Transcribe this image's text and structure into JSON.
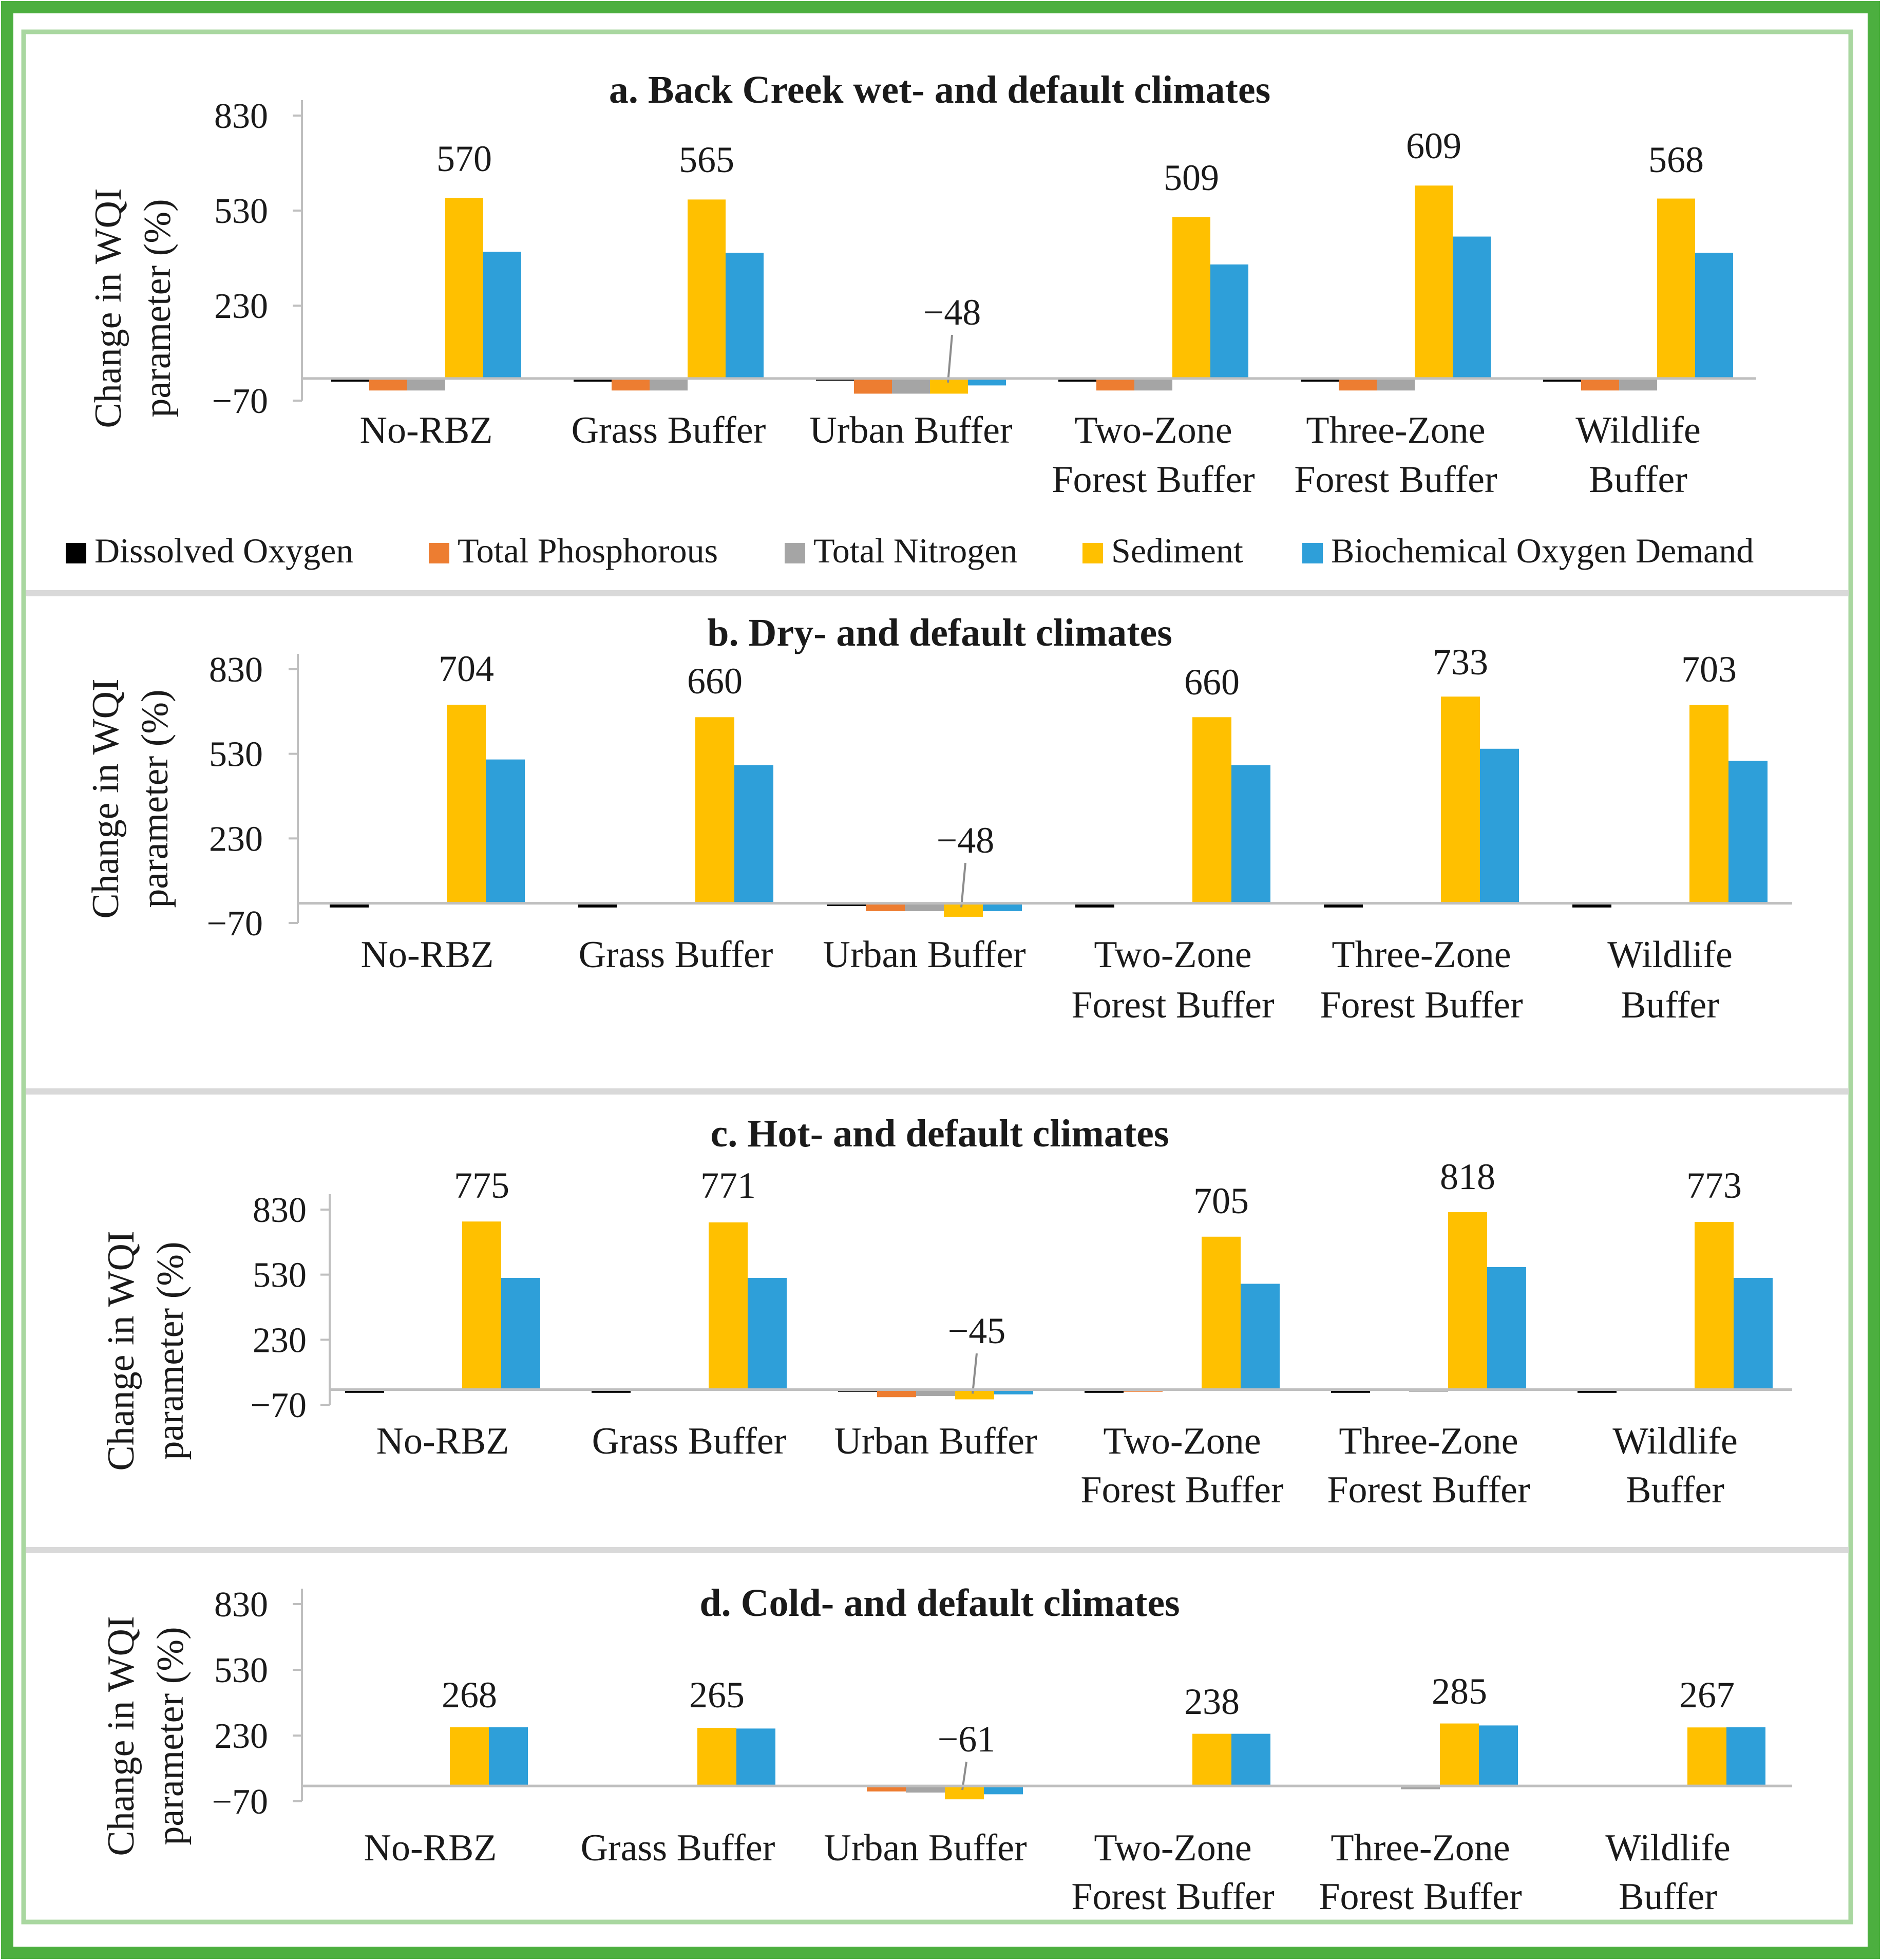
{
  "frame": {
    "outer_border_color": "#4caf3f",
    "inner_border_color": "#a9d7a0",
    "separator_color": "#d9d9d9"
  },
  "legend": {
    "items": [
      {
        "label": "Dissolved Oxygen",
        "color": "#000000"
      },
      {
        "label": "Total Phosphorous",
        "color": "#ed7d31"
      },
      {
        "label": "Total Nitrogen",
        "color": "#a5a5a5"
      },
      {
        "label": "Sediment",
        "color": "#ffc000"
      },
      {
        "label": "Biochemical Oxygen Demand",
        "color": "#2e9fd9"
      }
    ]
  },
  "chart_data": [
    {
      "type": "bar",
      "title": "a. Back Creek wet- and default climates",
      "ylabel": "Change in WQI parameter (%)",
      "ylim": [
        -70,
        830
      ],
      "yticks": [
        "830",
        "530",
        "230",
        "−70"
      ],
      "categories": [
        [
          "No-RBZ"
        ],
        [
          "Grass Buffer"
        ],
        [
          "Urban Buffer"
        ],
        [
          "Two-Zone",
          "Forest Buffer"
        ],
        [
          "Three-Zone",
          "Forest Buffer"
        ],
        [
          "Wildlife",
          "Buffer"
        ]
      ],
      "series": [
        {
          "name": "Dissolved Oxygen",
          "values": [
            -10,
            -10,
            -7,
            -10,
            -10,
            -10
          ]
        },
        {
          "name": "Total Phosphorous",
          "values": [
            -38,
            -38,
            -48,
            -38,
            -38,
            -38
          ]
        },
        {
          "name": "Total Nitrogen",
          "values": [
            -38,
            -38,
            -48,
            -38,
            -38,
            -38
          ]
        },
        {
          "name": "Sediment",
          "values": [
            570,
            565,
            -48,
            509,
            609,
            568
          ]
        },
        {
          "name": "Biochemical Oxygen Demand",
          "values": [
            400,
            397,
            -22,
            360,
            448,
            397
          ]
        }
      ],
      "data_labels": [
        "570",
        "565",
        "−48",
        "509",
        "609",
        "568"
      ],
      "grid": false
    },
    {
      "type": "bar",
      "title": "b. Dry- and default climates",
      "ylabel": "Change in WQI parameter (%)",
      "ylim": [
        -70,
        830
      ],
      "yticks": [
        "830",
        "530",
        "230",
        "−70"
      ],
      "categories": [
        [
          "No-RBZ"
        ],
        [
          "Grass Buffer"
        ],
        [
          "Urban Buffer"
        ],
        [
          "Two-Zone",
          "Forest Buffer"
        ],
        [
          "Three-Zone",
          "Forest Buffer"
        ],
        [
          "Wildlife",
          "Buffer"
        ]
      ],
      "series": [
        {
          "name": "Dissolved Oxygen",
          "values": [
            -15,
            -15,
            -10,
            -15,
            -15,
            -15
          ]
        },
        {
          "name": "Total Phosphorous",
          "values": [
            -3,
            -3,
            -28,
            -3,
            -3,
            -3
          ]
        },
        {
          "name": "Total Nitrogen",
          "values": [
            -3,
            -3,
            -28,
            -3,
            -3,
            -3
          ]
        },
        {
          "name": "Sediment",
          "values": [
            704,
            660,
            -48,
            660,
            733,
            703
          ]
        },
        {
          "name": "Biochemical Oxygen Demand",
          "values": [
            510,
            490,
            -28,
            490,
            548,
            505
          ]
        }
      ],
      "data_labels": [
        "704",
        "660",
        "−48",
        "660",
        "733",
        "703"
      ],
      "grid": false
    },
    {
      "type": "bar",
      "title": "c. Hot- and default climates",
      "ylabel": "Change in WQI parameter (%)",
      "ylim": [
        -70,
        830
      ],
      "yticks": [
        "830",
        "530",
        "230",
        "−70"
      ],
      "categories": [
        [
          "No-RBZ"
        ],
        [
          "Grass Buffer"
        ],
        [
          "Urban Buffer"
        ],
        [
          "Two-Zone",
          "Forest Buffer"
        ],
        [
          "Three-Zone",
          "Forest Buffer"
        ],
        [
          "Wildlife",
          "Buffer"
        ]
      ],
      "series": [
        {
          "name": "Dissolved Oxygen",
          "values": [
            -15,
            -15,
            -10,
            -15,
            -15,
            -15
          ]
        },
        {
          "name": "Total Phosphorous",
          "values": [
            -5,
            -5,
            -35,
            -10,
            -5,
            -5
          ]
        },
        {
          "name": "Total Nitrogen",
          "values": [
            -5,
            -5,
            -30,
            -5,
            -10,
            -5
          ]
        },
        {
          "name": "Sediment",
          "values": [
            775,
            771,
            -45,
            705,
            818,
            773
          ]
        },
        {
          "name": "Biochemical Oxygen Demand",
          "values": [
            515,
            515,
            -22,
            488,
            565,
            515
          ]
        }
      ],
      "data_labels": [
        "775",
        "771",
        "−45",
        "705",
        "818",
        "773"
      ],
      "grid": false
    },
    {
      "type": "bar",
      "title": "d. Cold- and default climates",
      "ylabel": "Change in WQI parameter (%)",
      "ylim": [
        -70,
        830
      ],
      "yticks": [
        "830",
        "530",
        "230",
        "−70"
      ],
      "categories": [
        [
          "No-RBZ"
        ],
        [
          "Grass Buffer"
        ],
        [
          "Urban Buffer"
        ],
        [
          "Two-Zone",
          "Forest Buffer"
        ],
        [
          "Three-Zone",
          "Forest Buffer"
        ],
        [
          "Wildlife",
          "Buffer"
        ]
      ],
      "series": [
        {
          "name": "Dissolved Oxygen",
          "values": [
            -5,
            -5,
            -5,
            -5,
            -5,
            -5
          ]
        },
        {
          "name": "Total Phosphorous",
          "values": [
            -5,
            -5,
            -25,
            -5,
            -5,
            -5
          ]
        },
        {
          "name": "Total Nitrogen",
          "values": [
            -5,
            -5,
            -30,
            -5,
            -15,
            -5
          ]
        },
        {
          "name": "Sediment",
          "values": [
            268,
            265,
            -61,
            238,
            285,
            267
          ]
        },
        {
          "name": "Biochemical Oxygen Demand",
          "values": [
            268,
            262,
            -38,
            238,
            276,
            268
          ]
        }
      ],
      "data_labels": [
        "268",
        "265",
        "−61",
        "238",
        "285",
        "267"
      ],
      "grid": false
    }
  ]
}
